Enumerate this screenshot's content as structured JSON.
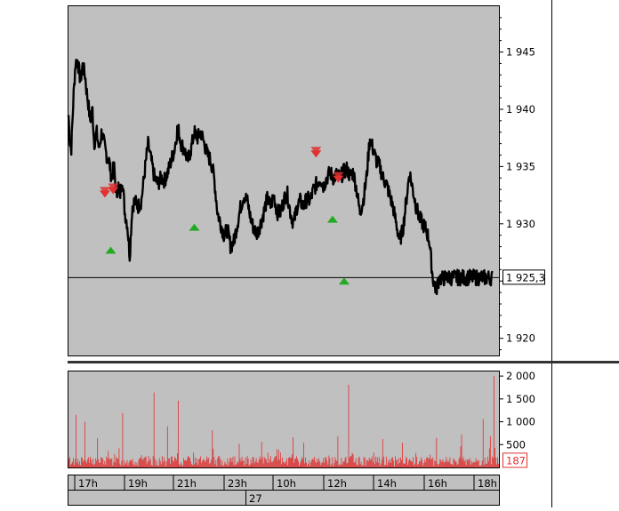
{
  "chart_data": [
    {
      "type": "line",
      "title": "",
      "xlabel": "",
      "ylabel": "",
      "ylim": [
        1918.5,
        1949
      ],
      "yticks": [
        1920,
        1925,
        1930,
        1935,
        1940,
        1945
      ],
      "ytick_labels": [
        "1 920",
        "1 925",
        "1 930",
        "1 935",
        "1 940",
        "1 945"
      ],
      "grid": false,
      "last_value": 1925.3,
      "last_value_label": "1 925,3",
      "x_hours": [
        0,
        0.083,
        0.167,
        0.3,
        0.42,
        0.55,
        0.72,
        0.85,
        1.0,
        1.1,
        1.2,
        1.3,
        1.45,
        1.55,
        1.7,
        1.85,
        2.0,
        2.15,
        2.3,
        2.45,
        2.6,
        2.75,
        2.9,
        3.0,
        3.1,
        3.25,
        3.4,
        3.55,
        3.7,
        3.85,
        4.0,
        4.2,
        4.4,
        4.6,
        4.8,
        5.0,
        5.2,
        5.4,
        5.6,
        5.8,
        6.0,
        6.2,
        6.4,
        6.6,
        6.8,
        7.0,
        7.2,
        7.4,
        7.6,
        7.8,
        8.0,
        8.2,
        8.4,
        8.6,
        8.8,
        9.0,
        9.2,
        9.4,
        9.6,
        9.8,
        10.0,
        10.2,
        10.4,
        10.6,
        10.8,
        11.0,
        11.2,
        11.4,
        11.6,
        11.8,
        12.0,
        12.2,
        12.4,
        12.6,
        12.8,
        13.0,
        13.2,
        13.4,
        13.6,
        13.8,
        14.0,
        14.2,
        14.4,
        14.6,
        14.8,
        15.0,
        15.2,
        15.4,
        15.6,
        15.8,
        16.0,
        16.2,
        16.4,
        16.6,
        16.8,
        17.0,
        17.2,
        17.4,
        17.6,
        17.8,
        18.0,
        18.2,
        18.4,
        18.6,
        18.8,
        19.0,
        19.2,
        19.4,
        19.6,
        19.8,
        20.0,
        20.2,
        20.4,
        20.6,
        20.8,
        21.0,
        21.2,
        21.4,
        21.6,
        21.8,
        22.0,
        22.2,
        22.4,
        22.6,
        22.8,
        23.0,
        23.2,
        23.4,
        23.6,
        23.8,
        24.0,
        24.2,
        24.4,
        24.6,
        24.8,
        25.0,
        25.1,
        25.2,
        25.3,
        25.4,
        25.5,
        25.6
      ],
      "series": [
        {
          "values": [
            1939.5,
            1937.2,
            1936.5,
            1941.0,
            1944.0,
            1944.3,
            1942.5,
            1943.8,
            1943.0,
            1941.5,
            1940.5,
            1939.0,
            1940.0,
            1937.0,
            1938.0,
            1936.5,
            1938.0,
            1937.0,
            1936.0,
            1935.5,
            1934.0,
            1935.0,
            1932.3,
            1933.5,
            1932.3,
            1934.0,
            1931.0,
            1930.0,
            1927.2,
            1931.5,
            1932.0,
            1931.5,
            1932.0,
            1934.5,
            1937.0,
            1935.5,
            1934.0,
            1933.5,
            1934.0,
            1933.8,
            1934.5,
            1935.5,
            1936.5,
            1938.5,
            1937.0,
            1936.5,
            1935.5,
            1936.5,
            1938.0,
            1937.5,
            1938.0,
            1937.0,
            1936.0,
            1935.5,
            1934.0,
            1931.0,
            1930.0,
            1929.0,
            1929.5,
            1928.0,
            1928.5,
            1930.0,
            1931.5,
            1932.5,
            1932.0,
            1930.5,
            1929.5,
            1929.2,
            1930.0,
            1931.0,
            1932.2,
            1931.5,
            1932.5,
            1931.0,
            1931.0,
            1932.0,
            1932.8,
            1931.0,
            1930.0,
            1931.5,
            1932.0,
            1931.5,
            1932.2,
            1932.0,
            1933.0,
            1933.5,
            1934.0,
            1933.3,
            1934.0,
            1934.5,
            1934.0,
            1934.3,
            1934.0,
            1934.5,
            1934.8,
            1934.2,
            1934.5,
            1933.0,
            1931.0,
            1932.0,
            1934.0,
            1937.5,
            1936.5,
            1935.5,
            1935.0,
            1934.0,
            1933.5,
            1932.5,
            1931.5,
            1930.0,
            1928.5,
            1929.5,
            1932.0,
            1934.5,
            1933.0,
            1931.5,
            1930.5,
            1930.0,
            1929.5,
            1928.5,
            1925.3,
            1924.2,
            1925.3,
            1925.2,
            1925.3,
            1925.3,
            1925.3,
            1925.3,
            1925.3,
            1925.3,
            1925.3,
            1925.3,
            1925.3,
            1925.3,
            1925.3,
            1925.3,
            1925.3,
            1925.3,
            1925.3,
            1925.3,
            1925.3,
            1925.3
          ]
        }
      ],
      "buy_signals": [
        {
          "x_hour": 2.55,
          "y": 1927.7
        },
        {
          "x_hour": 7.6,
          "y": 1929.7
        },
        {
          "x_hour": 15.95,
          "y": 1930.4
        },
        {
          "x_hour": 16.65,
          "y": 1925.0
        }
      ],
      "sell_signals": [
        {
          "x_hour": 2.2,
          "y": 1932.6
        },
        {
          "x_hour": 2.7,
          "y": 1932.9
        },
        {
          "x_hour": 14.95,
          "y": 1936.1
        },
        {
          "x_hour": 16.3,
          "y": 1933.9
        }
      ],
      "signal_colors": {
        "buy": "#22aa22",
        "sell": "#e03030"
      }
    },
    {
      "type": "bar",
      "title": "",
      "ylim": [
        0,
        2100
      ],
      "yticks": [
        500,
        1000,
        1500,
        2000
      ],
      "ytick_labels": [
        "500",
        "1 000",
        "1 500",
        "2 000"
      ],
      "last_value": 187,
      "last_value_label": "187",
      "bar_color": "#e03030",
      "n_bars": 480,
      "base_level": 140,
      "spikes": [
        {
          "bar": 8,
          "value": 1150
        },
        {
          "bar": 18,
          "value": 1000
        },
        {
          "bar": 32,
          "value": 640
        },
        {
          "bar": 60,
          "value": 1190
        },
        {
          "bar": 95,
          "value": 1640
        },
        {
          "bar": 110,
          "value": 900
        },
        {
          "bar": 122,
          "value": 1460
        },
        {
          "bar": 160,
          "value": 810
        },
        {
          "bar": 190,
          "value": 520
        },
        {
          "bar": 215,
          "value": 560
        },
        {
          "bar": 250,
          "value": 660
        },
        {
          "bar": 262,
          "value": 540
        },
        {
          "bar": 300,
          "value": 680
        },
        {
          "bar": 312,
          "value": 1810
        },
        {
          "bar": 350,
          "value": 620
        },
        {
          "bar": 372,
          "value": 540
        },
        {
          "bar": 410,
          "value": 650
        },
        {
          "bar": 438,
          "value": 720
        },
        {
          "bar": 462,
          "value": 1060
        },
        {
          "bar": 470,
          "value": 680
        },
        {
          "bar": 474,
          "value": 2000
        }
      ],
      "x_ticks": [
        "17h",
        "19h",
        "21h",
        "23h",
        "10h",
        "12h",
        "14h",
        "16h",
        "18h"
      ],
      "date_label": "27"
    }
  ]
}
